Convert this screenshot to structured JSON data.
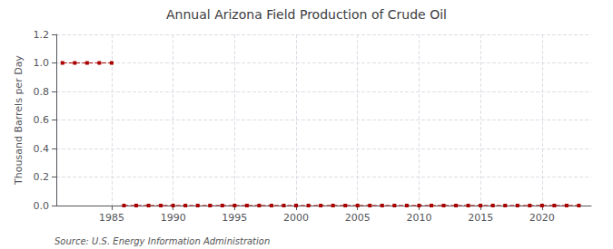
{
  "chart_data": {
    "type": "line",
    "title": "Annual Arizona Field Production of Crude Oil",
    "ylabel": "Thousand Barrels per Day",
    "annotations": [
      "Source: U.S. Energy Information Administration"
    ],
    "x": [
      1981,
      1982,
      1983,
      1984,
      1985,
      null,
      1986,
      1987,
      1988,
      1989,
      1990,
      1991,
      1992,
      1993,
      1994,
      1995,
      1996,
      1997,
      1998,
      1999,
      2000,
      2001,
      2002,
      2003,
      2004,
      2005,
      2006,
      2007,
      2008,
      2009,
      2010,
      2011,
      2012,
      2013,
      2014,
      2015,
      2016,
      2017,
      2018,
      2019,
      2020,
      2021,
      2022,
      2023
    ],
    "values": [
      1.0,
      1.0,
      1.0,
      1.0,
      1.0,
      null,
      0.0,
      0.0,
      0.0,
      0.0,
      0.0,
      0.0,
      0.0,
      0.0,
      0.0,
      0.0,
      0.0,
      0.0,
      0.0,
      0.0,
      0.0,
      0.0,
      0.0,
      0.0,
      0.0,
      0.0,
      0.0,
      0.0,
      0.0,
      0.0,
      0.0,
      0.0,
      0.0,
      0.0,
      0.0,
      0.0,
      0.0,
      0.0,
      0.0,
      0.0,
      0.0,
      0.0,
      0.0,
      0.0
    ],
    "color": "#aa0000",
    "marker": "square",
    "line_style": "dashed",
    "xlim": [
      1980.5,
      2024
    ],
    "xticks": [
      1985,
      1990,
      1995,
      2000,
      2005,
      2010,
      2015,
      2020
    ],
    "ylim": [
      0,
      1.2
    ],
    "yticks": [
      {
        "value": 0,
        "label": "0.0"
      },
      0.2,
      0.4,
      0.6,
      0.8,
      {
        "value": 1,
        "label": "1.0"
      },
      1.2
    ],
    "grid": true
  }
}
